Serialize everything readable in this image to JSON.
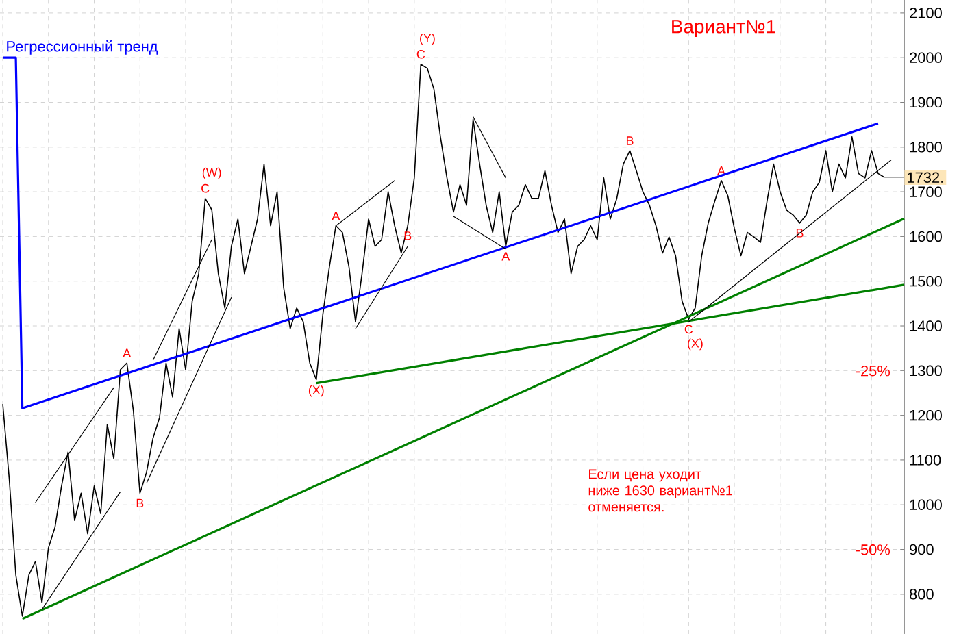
{
  "chart_data": {
    "type": "line",
    "title": "Вариант№1",
    "categories": [
      null,
      null,
      null,
      null,
      null,
      null,
      null,
      null,
      null,
      null,
      null,
      null,
      null,
      null,
      null,
      null,
      null,
      null,
      null,
      null,
      null,
      null,
      null,
      null,
      null,
      null,
      null,
      null,
      null,
      null,
      null,
      null,
      null,
      null,
      null,
      null,
      null,
      null,
      null,
      null,
      null,
      null,
      null,
      null,
      null,
      null,
      null,
      null,
      null,
      null,
      null,
      null,
      null,
      null,
      null,
      null,
      null,
      null,
      null,
      null,
      null,
      null,
      null,
      null,
      null,
      null,
      null,
      null,
      null,
      null,
      null,
      null,
      null,
      null,
      null,
      null,
      null,
      null,
      null,
      null,
      null,
      null,
      null,
      null,
      null,
      null,
      null,
      null,
      null,
      null,
      null,
      null,
      null,
      null,
      null,
      null,
      null,
      null,
      null,
      null,
      null,
      null,
      null,
      null,
      null,
      null,
      null,
      null,
      null,
      null,
      null,
      null,
      null,
      null,
      null,
      null,
      null,
      null,
      null,
      null,
      null,
      null,
      null,
      null,
      null,
      null,
      null,
      null,
      null,
      null,
      null,
      null,
      null,
      null,
      null,
      null,
      null,
      null,
      null
    ],
    "ylim": [
      711,
      2129
    ],
    "yticks": [
      800,
      900,
      1000,
      1100,
      1200,
      1300,
      1400,
      1500,
      1600,
      1700,
      1800,
      1900,
      2000,
      2100
    ],
    "tick_labels": "y",
    "grid": true,
    "marker": "none",
    "series": [
      {
        "color": "#000000",
        "values": [
          1225,
          1057,
          843,
          751,
          843,
          873,
          781,
          904,
          950,
          1042,
          1118,
          965,
          1026,
          935,
          1042,
          980,
          1180,
          1103,
          1302,
          1317,
          1210,
          1026,
          1072,
          1149,
          1195,
          1317,
          1241,
          1394,
          1302,
          1455,
          1517,
          1685,
          1660,
          1517,
          1440,
          1578,
          1639,
          1517,
          1578,
          1639,
          1762,
          1624,
          1700,
          1486,
          1394,
          1440,
          1409,
          1317,
          1280,
          1425,
          1532,
          1624,
          1609,
          1532,
          1409,
          1517,
          1639,
          1578,
          1593,
          1700,
          1624,
          1563,
          1624,
          1731,
          1985,
          1976,
          1930,
          1823,
          1731,
          1655,
          1716,
          1670,
          1862,
          1762,
          1670,
          1609,
          1700,
          1578,
          1655,
          1670,
          1716,
          1685,
          1685,
          1747,
          1670,
          1609,
          1639,
          1517,
          1578,
          1593,
          1624,
          1593,
          1731,
          1639,
          1685,
          1762,
          1792,
          1747,
          1700,
          1670,
          1624,
          1563,
          1599,
          1557,
          1455,
          1415,
          1440,
          1557,
          1630,
          1679,
          1725,
          1691,
          1618,
          1557,
          1609,
          1599,
          1587,
          1679,
          1762,
          1700,
          1659,
          1648,
          1630,
          1648,
          1700,
          1721,
          1792,
          1700,
          1762,
          1731,
          1823,
          1741,
          1731,
          1792,
          1741,
          1732,
          null,
          null,
          null
        ],
        "value_labels": [
          null,
          null,
          null,
          null,
          null,
          null,
          null,
          null,
          null,
          null,
          null,
          null,
          null,
          null,
          null,
          null,
          null,
          null,
          null,
          "A",
          null,
          "B",
          null,
          null,
          null,
          null,
          null,
          null,
          null,
          null,
          null,
          "C",
          "(W)",
          null,
          null,
          null,
          null,
          null,
          null,
          null,
          null,
          null,
          null,
          null,
          null,
          null,
          null,
          null,
          "(X)",
          null,
          null,
          "A",
          null,
          null,
          null,
          null,
          null,
          null,
          null,
          null,
          null,
          null,
          "B",
          null,
          "C",
          "(Y)",
          null,
          null,
          null,
          null,
          null,
          null,
          null,
          null,
          null,
          null,
          null,
          "A",
          null,
          null,
          null,
          null,
          null,
          null,
          null,
          null,
          null,
          null,
          null,
          null,
          null,
          null,
          null,
          null,
          null,
          null,
          "B",
          null,
          null,
          null,
          null,
          null,
          null,
          null,
          null,
          "C",
          "(X)",
          null,
          null,
          null,
          "A",
          null,
          null,
          null,
          null,
          null,
          null,
          null,
          null,
          null,
          null,
          null,
          "B",
          null,
          null,
          null,
          null,
          null,
          null,
          null,
          null,
          null,
          null,
          null,
          null,
          null,
          null,
          null,
          null
        ]
      },
      {
        "name": "Регрессионный тренд",
        "color": "#0000ff",
        "values": [
          2000,
          null,
          2000,
          1216,
          null,
          null,
          null,
          null,
          null,
          null,
          null,
          null,
          null,
          null,
          null,
          null,
          null,
          null,
          null,
          null,
          null,
          null,
          null,
          null,
          null,
          null,
          null,
          null,
          null,
          null,
          null,
          null,
          null,
          null,
          null,
          null,
          null,
          null,
          null,
          null,
          null,
          null,
          null,
          null,
          null,
          null,
          null,
          null,
          null,
          null,
          null,
          null,
          null,
          null,
          null,
          null,
          null,
          null,
          null,
          null,
          null,
          null,
          null,
          null,
          null,
          null,
          null,
          null,
          null,
          null,
          null,
          null,
          null,
          null,
          null,
          null,
          null,
          null,
          null,
          null,
          null,
          null,
          null,
          null,
          null,
          null,
          null,
          null,
          null,
          null,
          null,
          null,
          null,
          null,
          null,
          null,
          null,
          null,
          null,
          null,
          null,
          null,
          null,
          null,
          null,
          null,
          null,
          null,
          null,
          null,
          null,
          null,
          null,
          null,
          null,
          null,
          null,
          null,
          null,
          null,
          null,
          null,
          null,
          null,
          null,
          null,
          null,
          null,
          null,
          null,
          null,
          null,
          null,
          null,
          1853,
          null,
          null,
          null,
          null
        ]
      },
      {
        "color": "#008000",
        "values": [
          null,
          null,
          null,
          745,
          null,
          null,
          null,
          null,
          null,
          null,
          null,
          null,
          null,
          null,
          null,
          null,
          null,
          null,
          null,
          null,
          null,
          null,
          null,
          null,
          null,
          null,
          null,
          null,
          null,
          null,
          null,
          null,
          null,
          null,
          null,
          null,
          null,
          null,
          null,
          null,
          null,
          null,
          null,
          null,
          null,
          null,
          null,
          null,
          null,
          null,
          null,
          null,
          null,
          null,
          null,
          null,
          null,
          null,
          null,
          null,
          null,
          null,
          null,
          null,
          null,
          null,
          null,
          null,
          null,
          null,
          null,
          null,
          null,
          null,
          null,
          null,
          null,
          null,
          null,
          null,
          null,
          null,
          null,
          null,
          null,
          null,
          null,
          null,
          null,
          null,
          null,
          null,
          null,
          null,
          null,
          null,
          null,
          null,
          null,
          null,
          null,
          null,
          null,
          null,
          null,
          null,
          null,
          null,
          null,
          null,
          null,
          null,
          null,
          null,
          null,
          null,
          null,
          null,
          null,
          null,
          null,
          null,
          null,
          null,
          null,
          null,
          null,
          null,
          null,
          null,
          null,
          null,
          null,
          null,
          null,
          null,
          null,
          null,
          1640
        ]
      },
      {
        "color": "#008000",
        "values": [
          null,
          null,
          null,
          null,
          null,
          null,
          null,
          null,
          null,
          null,
          null,
          null,
          null,
          null,
          null,
          null,
          null,
          null,
          null,
          null,
          null,
          null,
          null,
          null,
          null,
          null,
          null,
          null,
          null,
          null,
          null,
          null,
          null,
          null,
          null,
          null,
          null,
          null,
          null,
          null,
          null,
          null,
          null,
          null,
          null,
          null,
          null,
          null,
          1272,
          null,
          null,
          null,
          null,
          null,
          null,
          null,
          null,
          null,
          null,
          null,
          null,
          null,
          null,
          null,
          null,
          null,
          null,
          null,
          null,
          null,
          null,
          null,
          null,
          null,
          null,
          null,
          null,
          null,
          null,
          null,
          null,
          null,
          null,
          null,
          null,
          null,
          null,
          null,
          null,
          null,
          null,
          null,
          null,
          null,
          null,
          null,
          null,
          null,
          null,
          null,
          null,
          null,
          null,
          null,
          null,
          null,
          null,
          null,
          null,
          null,
          null,
          null,
          null,
          null,
          null,
          null,
          null,
          null,
          null,
          null,
          null,
          null,
          null,
          null,
          null,
          null,
          null,
          null,
          null,
          null,
          null,
          null,
          null,
          null,
          null,
          null,
          null,
          null,
          1492
        ]
      },
      {
        "color": "#000000",
        "values": [
          null,
          null,
          null,
          null,
          null,
          1005,
          null,
          null,
          null,
          null,
          null,
          null,
          null,
          null,
          null,
          null,
          null,
          1262,
          null,
          null,
          null,
          null,
          null,
          null,
          null,
          null,
          null,
          null,
          null,
          null,
          null,
          null,
          null,
          null,
          null,
          null,
          null,
          null,
          null,
          null,
          null,
          null,
          null,
          null,
          null,
          null,
          null,
          null,
          null,
          null,
          null,
          null,
          null,
          null,
          null,
          null,
          null,
          null,
          null,
          null,
          null,
          null,
          null,
          null,
          null,
          null,
          null,
          null,
          null,
          null,
          null,
          null,
          null,
          null,
          null,
          null,
          null,
          null,
          null,
          null,
          null,
          null,
          null,
          null,
          null,
          null,
          null,
          null,
          null,
          null,
          null,
          null,
          null,
          null,
          null,
          null,
          null,
          null,
          null,
          null,
          null,
          null,
          null,
          null,
          null,
          null,
          null,
          null,
          null,
          null,
          null,
          null,
          null,
          null,
          null,
          null,
          null,
          null,
          null,
          null,
          null,
          null,
          null,
          null,
          null,
          null,
          null,
          null,
          null,
          null,
          null,
          null,
          null,
          null,
          null,
          null,
          null,
          null,
          null
        ]
      },
      {
        "color": "#000000",
        "values": [
          null,
          null,
          null,
          null,
          null,
          null,
          766,
          null,
          null,
          null,
          null,
          null,
          null,
          null,
          null,
          null,
          null,
          null,
          1029,
          null,
          null,
          null,
          null,
          null,
          null,
          null,
          null,
          null,
          null,
          null,
          null,
          null,
          null,
          null,
          null,
          null,
          null,
          null,
          null,
          null,
          null,
          null,
          null,
          null,
          null,
          null,
          null,
          null,
          null,
          null,
          null,
          null,
          null,
          null,
          null,
          null,
          null,
          null,
          null,
          null,
          null,
          null,
          null,
          null,
          null,
          null,
          null,
          null,
          null,
          null,
          null,
          null,
          null,
          null,
          null,
          null,
          null,
          null,
          null,
          null,
          null,
          null,
          null,
          null,
          null,
          null,
          null,
          null,
          null,
          null,
          null,
          null,
          null,
          null,
          null,
          null,
          null,
          null,
          null,
          null,
          null,
          null,
          null,
          null,
          null,
          null,
          null,
          null,
          null,
          null,
          null,
          null,
          null,
          null,
          null,
          null,
          null,
          null,
          null,
          null,
          null,
          null,
          null,
          null,
          null,
          null,
          null,
          null,
          null,
          null,
          null,
          null,
          null,
          null,
          null,
          null,
          null,
          null,
          null
        ]
      },
      {
        "color": "#000000",
        "values": [
          null,
          null,
          null,
          null,
          null,
          null,
          null,
          null,
          null,
          null,
          null,
          null,
          null,
          null,
          null,
          null,
          null,
          null,
          null,
          null,
          null,
          null,
          null,
          1323,
          null,
          null,
          null,
          null,
          null,
          null,
          null,
          null,
          1593,
          null,
          null,
          null,
          null,
          null,
          null,
          null,
          null,
          null,
          null,
          null,
          null,
          null,
          null,
          null,
          null,
          null,
          null,
          null,
          null,
          null,
          null,
          null,
          null,
          null,
          null,
          null,
          null,
          null,
          null,
          null,
          null,
          null,
          null,
          null,
          null,
          null,
          null,
          null,
          null,
          null,
          null,
          null,
          null,
          null,
          null,
          null,
          null,
          null,
          null,
          null,
          null,
          null,
          null,
          null,
          null,
          null,
          null,
          null,
          null,
          null,
          null,
          null,
          null,
          null,
          null,
          null,
          null,
          null,
          null,
          null,
          null,
          null,
          null,
          null,
          null,
          null,
          null,
          null,
          null,
          null,
          null,
          null,
          null,
          null,
          null,
          null,
          null,
          null,
          null,
          null,
          null,
          null,
          null,
          null,
          null,
          null,
          null,
          null,
          null,
          null,
          null,
          null,
          null,
          null,
          null
        ]
      },
      {
        "color": "#000000",
        "values": [
          null,
          null,
          null,
          null,
          null,
          null,
          null,
          null,
          null,
          null,
          null,
          null,
          null,
          null,
          null,
          null,
          null,
          null,
          null,
          null,
          null,
          null,
          1048,
          null,
          null,
          null,
          null,
          null,
          null,
          null,
          null,
          null,
          null,
          null,
          null,
          1464,
          null,
          null,
          null,
          null,
          null,
          null,
          null,
          null,
          null,
          null,
          null,
          null,
          null,
          null,
          null,
          null,
          null,
          null,
          null,
          null,
          null,
          null,
          null,
          null,
          null,
          null,
          null,
          null,
          null,
          null,
          null,
          null,
          null,
          null,
          null,
          null,
          null,
          null,
          null,
          null,
          null,
          null,
          null,
          null,
          null,
          null,
          null,
          null,
          null,
          null,
          null,
          null,
          null,
          null,
          null,
          null,
          null,
          null,
          null,
          null,
          null,
          null,
          null,
          null,
          null,
          null,
          null,
          null,
          null,
          null,
          null,
          null,
          null,
          null,
          null,
          null,
          null,
          null,
          null,
          null,
          null,
          null,
          null,
          null,
          null,
          null,
          null,
          null,
          null,
          null,
          null,
          null,
          null,
          null,
          null,
          null,
          null,
          null,
          null,
          null,
          null,
          null,
          null
        ]
      },
      {
        "color": "#000000",
        "values": [
          null,
          null,
          null,
          null,
          null,
          null,
          null,
          null,
          null,
          null,
          null,
          null,
          null,
          null,
          null,
          null,
          null,
          null,
          null,
          null,
          null,
          null,
          null,
          null,
          null,
          null,
          null,
          null,
          null,
          null,
          null,
          null,
          null,
          null,
          null,
          null,
          null,
          null,
          null,
          null,
          null,
          null,
          null,
          null,
          null,
          null,
          null,
          null,
          null,
          null,
          null,
          1624,
          null,
          null,
          null,
          null,
          null,
          null,
          null,
          null,
          1725,
          null,
          null,
          null,
          null,
          null,
          null,
          null,
          null,
          null,
          null,
          null,
          null,
          null,
          null,
          null,
          null,
          null,
          null,
          null,
          null,
          null,
          null,
          null,
          null,
          null,
          null,
          null,
          null,
          null,
          null,
          null,
          null,
          null,
          null,
          null,
          null,
          null,
          null,
          null,
          null,
          null,
          null,
          null,
          null,
          null,
          null,
          null,
          null,
          null,
          null,
          null,
          null,
          null,
          null,
          null,
          null,
          null,
          null,
          null,
          null,
          null,
          null,
          null,
          null,
          null,
          null,
          null,
          null,
          null,
          null,
          null,
          null,
          null,
          null,
          null,
          null,
          null,
          null
        ]
      },
      {
        "color": "#000000",
        "values": [
          null,
          null,
          null,
          null,
          null,
          null,
          null,
          null,
          null,
          null,
          null,
          null,
          null,
          null,
          null,
          null,
          null,
          null,
          null,
          null,
          null,
          null,
          null,
          null,
          null,
          null,
          null,
          null,
          null,
          null,
          null,
          null,
          null,
          null,
          null,
          null,
          null,
          null,
          null,
          null,
          null,
          null,
          null,
          null,
          null,
          null,
          null,
          null,
          null,
          null,
          null,
          null,
          null,
          null,
          1394,
          null,
          null,
          null,
          null,
          null,
          null,
          null,
          1578,
          null,
          null,
          null,
          null,
          null,
          null,
          null,
          null,
          null,
          null,
          null,
          null,
          null,
          null,
          null,
          null,
          null,
          null,
          null,
          null,
          null,
          null,
          null,
          null,
          null,
          null,
          null,
          null,
          null,
          null,
          null,
          null,
          null,
          null,
          null,
          null,
          null,
          null,
          null,
          null,
          null,
          null,
          null,
          null,
          null,
          null,
          null,
          null,
          null,
          null,
          null,
          null,
          null,
          null,
          null,
          null,
          null,
          null,
          null,
          null,
          null,
          null,
          null,
          null,
          null,
          null,
          null,
          null,
          null,
          null,
          null,
          null,
          null,
          null,
          null,
          null
        ]
      },
      {
        "color": "#000000",
        "values": [
          null,
          null,
          null,
          null,
          null,
          null,
          null,
          null,
          null,
          null,
          null,
          null,
          null,
          null,
          null,
          null,
          null,
          null,
          null,
          null,
          null,
          null,
          null,
          null,
          null,
          null,
          null,
          null,
          null,
          null,
          null,
          null,
          null,
          null,
          null,
          null,
          null,
          null,
          null,
          null,
          null,
          null,
          null,
          null,
          null,
          null,
          null,
          null,
          null,
          null,
          null,
          null,
          null,
          null,
          null,
          null,
          null,
          null,
          null,
          null,
          null,
          null,
          null,
          null,
          null,
          null,
          null,
          null,
          null,
          null,
          null,
          null,
          1868,
          null,
          null,
          null,
          null,
          1731,
          null,
          null,
          null,
          null,
          null,
          null,
          null,
          null,
          null,
          null,
          null,
          null,
          null,
          null,
          null,
          null,
          null,
          null,
          null,
          null,
          null,
          null,
          null,
          null,
          null,
          null,
          null,
          null,
          null,
          null,
          null,
          null,
          null,
          null,
          null,
          null,
          null,
          null,
          null,
          null,
          null,
          null,
          null,
          null,
          null,
          null,
          null,
          null,
          null,
          null,
          null,
          null,
          null,
          null,
          null,
          null,
          null,
          null,
          null,
          null,
          null
        ]
      },
      {
        "color": "#000000",
        "values": [
          null,
          null,
          null,
          null,
          null,
          null,
          null,
          null,
          null,
          null,
          null,
          null,
          null,
          null,
          null,
          null,
          null,
          null,
          null,
          null,
          null,
          null,
          null,
          null,
          null,
          null,
          null,
          null,
          null,
          null,
          null,
          null,
          null,
          null,
          null,
          null,
          null,
          null,
          null,
          null,
          null,
          null,
          null,
          null,
          null,
          null,
          null,
          null,
          null,
          null,
          null,
          null,
          null,
          null,
          null,
          null,
          null,
          null,
          null,
          null,
          null,
          null,
          null,
          null,
          null,
          null,
          null,
          null,
          null,
          1645,
          null,
          null,
          null,
          null,
          null,
          null,
          null,
          1572,
          null,
          null,
          null,
          null,
          null,
          null,
          null,
          null,
          null,
          null,
          null,
          null,
          null,
          null,
          null,
          null,
          null,
          null,
          null,
          null,
          null,
          null,
          null,
          null,
          null,
          null,
          null,
          null,
          null,
          null,
          null,
          null,
          null,
          null,
          null,
          null,
          null,
          null,
          null,
          null,
          null,
          null,
          null,
          null,
          null,
          null,
          null,
          null,
          null,
          null,
          null,
          null,
          null,
          null,
          null,
          null,
          null,
          null,
          null,
          null,
          null
        ]
      },
      {
        "color": "#000000",
        "values": [
          null,
          null,
          null,
          null,
          null,
          null,
          null,
          null,
          null,
          null,
          null,
          null,
          null,
          null,
          null,
          null,
          null,
          null,
          null,
          null,
          null,
          null,
          null,
          null,
          null,
          null,
          null,
          null,
          null,
          null,
          null,
          null,
          null,
          null,
          null,
          null,
          null,
          null,
          null,
          null,
          null,
          null,
          null,
          null,
          null,
          null,
          null,
          null,
          null,
          null,
          null,
          null,
          null,
          null,
          null,
          null,
          null,
          null,
          null,
          null,
          null,
          null,
          null,
          null,
          null,
          null,
          null,
          null,
          null,
          null,
          null,
          null,
          null,
          null,
          null,
          null,
          null,
          null,
          null,
          null,
          null,
          null,
          null,
          null,
          null,
          null,
          null,
          null,
          null,
          null,
          null,
          null,
          null,
          null,
          null,
          null,
          null,
          null,
          null,
          null,
          null,
          null,
          null,
          null,
          null,
          1409,
          null,
          null,
          null,
          null,
          null,
          null,
          null,
          null,
          null,
          null,
          null,
          null,
          null,
          null,
          null,
          null,
          null,
          null,
          null,
          null,
          null,
          null,
          null,
          null,
          null,
          null,
          null,
          null,
          null,
          null,
          1771,
          null,
          null
        ]
      }
    ],
    "ref_lines": [
      {
        "axis": "y",
        "value": 1732,
        "label": "1732."
      }
    ],
    "annotations": [
      "-25%",
      "-50%",
      "Если цена уходит ниже 1630 вариант№1 отменяется."
    ]
  }
}
